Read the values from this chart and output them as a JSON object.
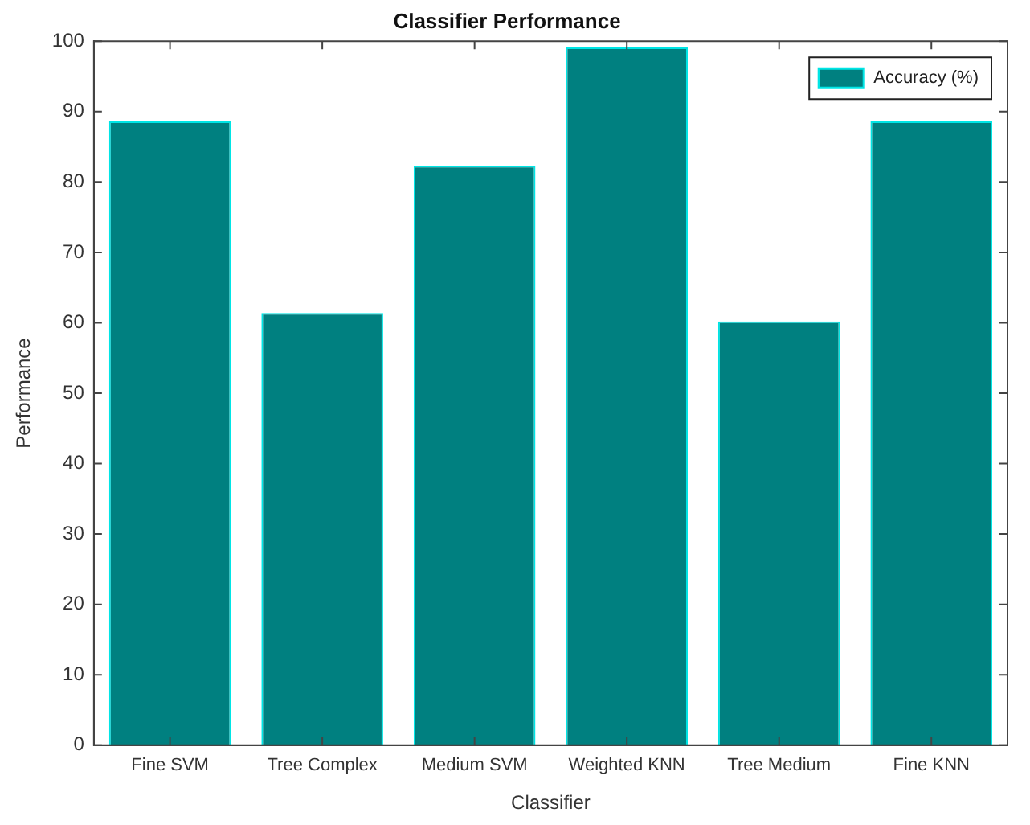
{
  "chart_data": {
    "type": "bar",
    "title": "Classifier Performance",
    "xlabel": "Classifier",
    "ylabel": "Performance",
    "categories": [
      "Fine SVM",
      "Tree Complex",
      "Medium SVM",
      "Weighted KNN",
      "Tree Medium",
      "Fine KNN"
    ],
    "series": [
      {
        "name": "Accuracy (%)",
        "color": "#008080",
        "values": [
          88.6,
          61.4,
          82.3,
          99.1,
          60.2,
          88.6
        ]
      }
    ],
    "ylim": [
      0,
      100
    ],
    "yticks": [
      0,
      10,
      20,
      30,
      40,
      50,
      60,
      70,
      80,
      90,
      100
    ],
    "grid": false,
    "legend": "top right"
  }
}
